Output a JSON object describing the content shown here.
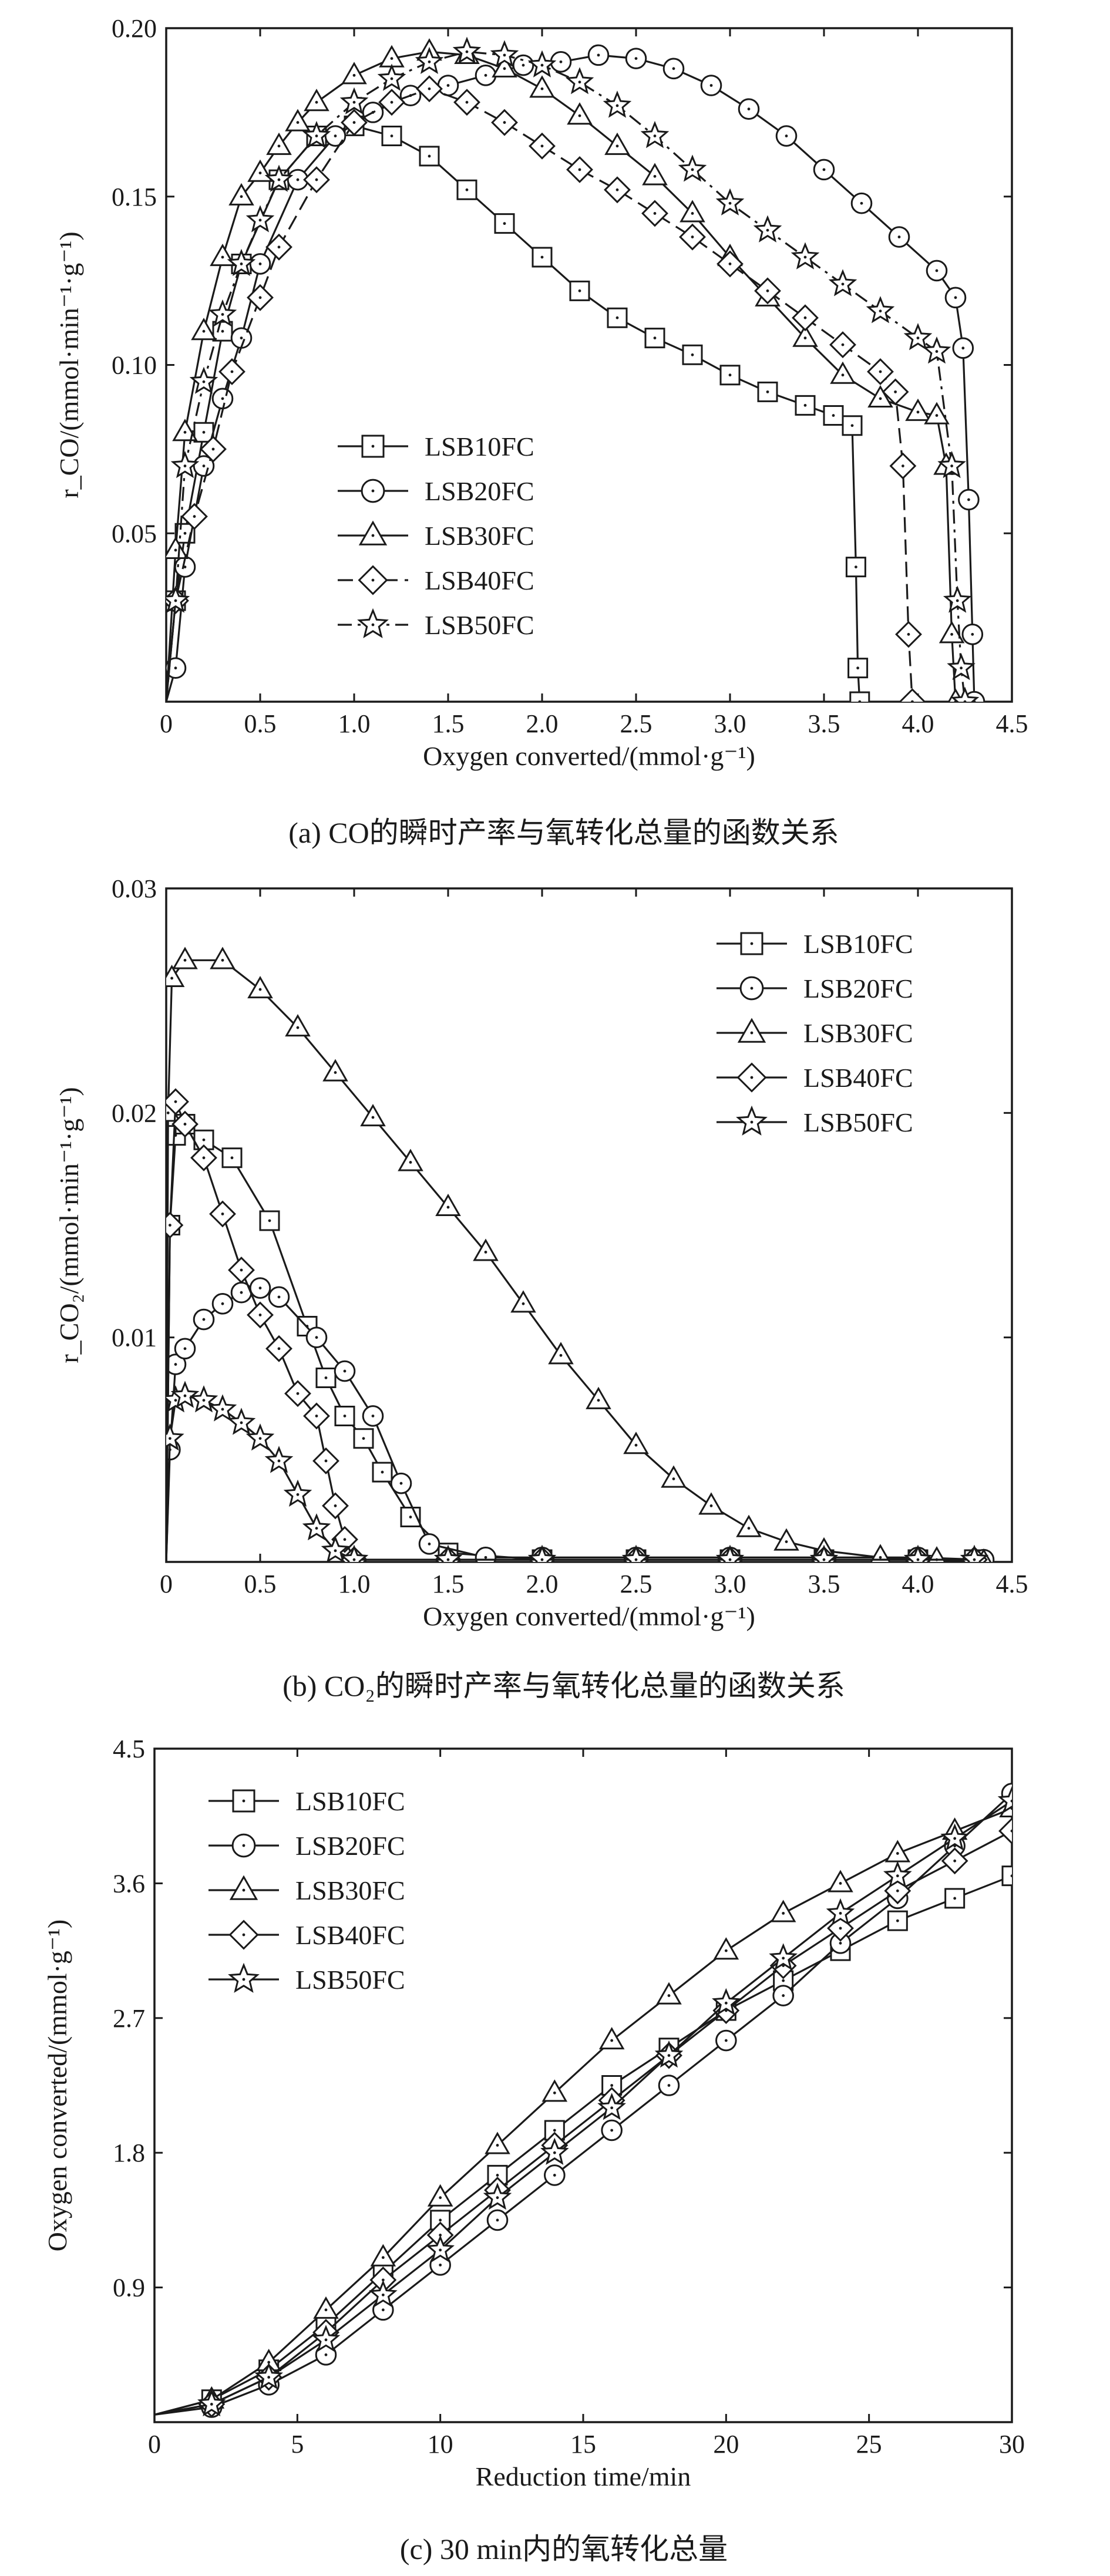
{
  "figure": {
    "panels": [
      {
        "caption": "(a) CO的瞬时产率与氧转化总量的函数关系"
      },
      {
        "caption": "(b) CO₂的瞬时产率与氧转化总量的函数关系"
      },
      {
        "caption": "(c) 30 min内的氧转化总量"
      }
    ]
  },
  "chart_data": [
    {
      "type": "line",
      "title": "(a) CO的瞬时产率与氧转化总量的函数关系",
      "xlabel": "Oxygen converted/(mmol·g⁻¹)",
      "ylabel": "r_CO/(mmol·min⁻¹·g⁻¹)",
      "xlim": [
        0,
        4.5
      ],
      "ylim": [
        0,
        0.2
      ],
      "xticks": [
        0,
        0.5,
        1.0,
        1.5,
        2.0,
        2.5,
        3.0,
        3.5,
        4.0,
        4.5
      ],
      "xtick_labels": [
        "0",
        "0.5",
        "1.0",
        "1.5",
        "2.0",
        "2.5",
        "3.0",
        "3.5",
        "4.0",
        "4.5"
      ],
      "yticks": [
        0.05,
        0.1,
        0.15,
        0.2
      ],
      "ytick_labels": [
        "0.05",
        "0.10",
        "0.15",
        "0.20"
      ],
      "legend_position": "center-left",
      "series": [
        {
          "name": "LSB10FC",
          "marker": "square",
          "dash": "solid",
          "x": [
            0,
            0.05,
            0.1,
            0.2,
            0.3,
            0.4,
            0.6,
            0.8,
            1.0,
            1.2,
            1.4,
            1.6,
            1.8,
            2.0,
            2.2,
            2.4,
            2.6,
            2.8,
            3.0,
            3.2,
            3.4,
            3.55,
            3.65,
            3.67,
            3.68,
            3.69
          ],
          "y": [
            0,
            0.03,
            0.05,
            0.08,
            0.11,
            0.13,
            0.155,
            0.168,
            0.171,
            0.168,
            0.162,
            0.152,
            0.142,
            0.132,
            0.122,
            0.114,
            0.108,
            0.103,
            0.097,
            0.092,
            0.088,
            0.085,
            0.082,
            0.04,
            0.01,
            0
          ]
        },
        {
          "name": "LSB20FC",
          "marker": "circle",
          "dash": "solid",
          "x": [
            0,
            0.05,
            0.1,
            0.2,
            0.3,
            0.4,
            0.5,
            0.7,
            0.9,
            1.1,
            1.3,
            1.5,
            1.7,
            1.9,
            2.1,
            2.3,
            2.5,
            2.7,
            2.9,
            3.1,
            3.3,
            3.5,
            3.7,
            3.9,
            4.1,
            4.2,
            4.24,
            4.27,
            4.29,
            4.3
          ],
          "y": [
            0,
            0.01,
            0.04,
            0.07,
            0.09,
            0.108,
            0.13,
            0.155,
            0.168,
            0.175,
            0.18,
            0.183,
            0.186,
            0.189,
            0.19,
            0.192,
            0.191,
            0.188,
            0.183,
            0.176,
            0.168,
            0.158,
            0.148,
            0.138,
            0.128,
            0.12,
            0.105,
            0.06,
            0.02,
            0
          ]
        },
        {
          "name": "LSB30FC",
          "marker": "triangle",
          "dash": "solid",
          "x": [
            0,
            0.05,
            0.1,
            0.2,
            0.3,
            0.4,
            0.5,
            0.6,
            0.7,
            0.8,
            1.0,
            1.2,
            1.4,
            1.6,
            1.8,
            2.0,
            2.2,
            2.4,
            2.6,
            2.8,
            3.0,
            3.2,
            3.4,
            3.6,
            3.8,
            4.0,
            4.1,
            4.15,
            4.18,
            4.2
          ],
          "y": [
            0,
            0.045,
            0.08,
            0.11,
            0.132,
            0.15,
            0.157,
            0.165,
            0.172,
            0.178,
            0.186,
            0.191,
            0.193,
            0.192,
            0.188,
            0.182,
            0.174,
            0.165,
            0.156,
            0.145,
            0.132,
            0.12,
            0.108,
            0.097,
            0.09,
            0.086,
            0.085,
            0.07,
            0.02,
            0
          ]
        },
        {
          "name": "LSB40FC",
          "marker": "diamond",
          "dash": "dash",
          "x": [
            0,
            0.05,
            0.15,
            0.25,
            0.35,
            0.5,
            0.6,
            0.8,
            1.0,
            1.2,
            1.4,
            1.6,
            1.8,
            2.0,
            2.2,
            2.4,
            2.6,
            2.8,
            3.0,
            3.2,
            3.4,
            3.6,
            3.8,
            3.88,
            3.92,
            3.95,
            3.97
          ],
          "y": [
            0,
            0.03,
            0.055,
            0.075,
            0.098,
            0.12,
            0.135,
            0.155,
            0.172,
            0.178,
            0.182,
            0.178,
            0.172,
            0.165,
            0.158,
            0.152,
            0.145,
            0.138,
            0.13,
            0.122,
            0.114,
            0.106,
            0.098,
            0.092,
            0.07,
            0.02,
            0
          ]
        },
        {
          "name": "LSB50FC",
          "marker": "star",
          "dash": "dashdot",
          "x": [
            0,
            0.05,
            0.1,
            0.2,
            0.3,
            0.4,
            0.5,
            0.6,
            0.8,
            1.0,
            1.2,
            1.4,
            1.6,
            1.8,
            2.0,
            2.2,
            2.4,
            2.6,
            2.8,
            3.0,
            3.2,
            3.4,
            3.6,
            3.8,
            4.0,
            4.1,
            4.18,
            4.21,
            4.23,
            4.25
          ],
          "y": [
            0,
            0.03,
            0.07,
            0.095,
            0.115,
            0.13,
            0.143,
            0.155,
            0.168,
            0.178,
            0.185,
            0.19,
            0.193,
            0.192,
            0.189,
            0.184,
            0.177,
            0.168,
            0.158,
            0.148,
            0.14,
            0.132,
            0.124,
            0.116,
            0.108,
            0.104,
            0.07,
            0.03,
            0.01,
            0
          ]
        }
      ]
    },
    {
      "type": "line",
      "title": "(b) CO₂的瞬时产率与氧转化总量的函数关系",
      "xlabel": "Oxygen converted/(mmol·g⁻¹)",
      "ylabel": "r_CO₂/(mmol·min⁻¹·g⁻¹)",
      "xlim": [
        0,
        4.5
      ],
      "ylim": [
        0,
        0.03
      ],
      "xticks": [
        0,
        0.5,
        1.0,
        1.5,
        2.0,
        2.5,
        3.0,
        3.5,
        4.0,
        4.5
      ],
      "xtick_labels": [
        "0",
        "0.5",
        "1.0",
        "1.5",
        "2.0",
        "2.5",
        "3.0",
        "3.5",
        "4.0",
        "4.5"
      ],
      "yticks": [
        0.01,
        0.02,
        0.03
      ],
      "ytick_labels": [
        "0.01",
        "0.02",
        "0.03"
      ],
      "legend_position": "top-right",
      "series": [
        {
          "name": "LSB10FC",
          "marker": "square",
          "dash": "solid",
          "x": [
            0,
            0.02,
            0.05,
            0.1,
            0.2,
            0.35,
            0.55,
            0.75,
            0.85,
            0.95,
            1.05,
            1.15,
            1.3,
            1.5,
            2.0,
            2.5,
            3.0,
            3.5,
            4.0,
            4.3
          ],
          "y": [
            0,
            0.015,
            0.019,
            0.0195,
            0.0188,
            0.018,
            0.0152,
            0.0105,
            0.0082,
            0.0065,
            0.0055,
            0.004,
            0.002,
            0.0004,
            0.0001,
            0.0001,
            0.0001,
            0.0001,
            0.0001,
            0.0001
          ]
        },
        {
          "name": "LSB20FC",
          "marker": "circle",
          "dash": "solid",
          "x": [
            0,
            0.02,
            0.05,
            0.1,
            0.2,
            0.3,
            0.4,
            0.5,
            0.6,
            0.8,
            0.95,
            1.1,
            1.25,
            1.4,
            1.7,
            2.0,
            2.5,
            3.0,
            3.5,
            4.0,
            4.35
          ],
          "y": [
            0,
            0.005,
            0.0088,
            0.0095,
            0.0108,
            0.0115,
            0.012,
            0.0122,
            0.0118,
            0.01,
            0.0085,
            0.0065,
            0.0035,
            0.0008,
            0.0002,
            0.0002,
            0.0002,
            0.0002,
            0.0002,
            0.0002,
            0.0001
          ]
        },
        {
          "name": "LSB30FC",
          "marker": "triangle",
          "dash": "solid",
          "x": [
            0,
            0.01,
            0.03,
            0.1,
            0.3,
            0.5,
            0.7,
            0.9,
            1.1,
            1.3,
            1.5,
            1.7,
            1.9,
            2.1,
            2.3,
            2.5,
            2.7,
            2.9,
            3.1,
            3.3,
            3.5,
            3.8,
            4.1,
            4.35
          ],
          "y": [
            0,
            0.02,
            0.026,
            0.0268,
            0.0268,
            0.0255,
            0.0238,
            0.0218,
            0.0198,
            0.0178,
            0.0158,
            0.0138,
            0.0115,
            0.0092,
            0.0072,
            0.0052,
            0.0037,
            0.0025,
            0.0015,
            0.0009,
            0.0005,
            0.0002,
            0.0001,
            0
          ]
        },
        {
          "name": "LSB40FC",
          "marker": "diamond",
          "dash": "solid",
          "x": [
            0,
            0.02,
            0.05,
            0.1,
            0.2,
            0.3,
            0.4,
            0.5,
            0.6,
            0.7,
            0.8,
            0.85,
            0.9,
            0.95,
            1.0,
            1.5,
            2.0,
            2.5,
            3.0,
            3.5,
            4.0,
            4.3
          ],
          "y": [
            0,
            0.015,
            0.0205,
            0.0195,
            0.018,
            0.0155,
            0.013,
            0.011,
            0.0095,
            0.0075,
            0.0065,
            0.0045,
            0.0025,
            0.001,
            0.0001,
            0.0001,
            0.0001,
            0.0001,
            0.0001,
            0.0001,
            0.0001,
            0.0001
          ]
        },
        {
          "name": "LSB50FC",
          "marker": "star",
          "dash": "solid",
          "x": [
            0,
            0.02,
            0.05,
            0.1,
            0.2,
            0.3,
            0.4,
            0.5,
            0.6,
            0.7,
            0.8,
            0.9,
            1.0,
            1.5,
            2.0,
            2.5,
            3.0,
            3.5,
            4.0,
            4.3
          ],
          "y": [
            0,
            0.0055,
            0.0072,
            0.0074,
            0.0072,
            0.0068,
            0.0062,
            0.0055,
            0.0045,
            0.003,
            0.0015,
            0.0005,
            0.0001,
            0.0001,
            0.0001,
            0.0001,
            0.0001,
            0.0001,
            0.0001,
            0.0001
          ]
        }
      ]
    },
    {
      "type": "line",
      "title": "(c) 30 min内的氧转化总量",
      "xlabel": "Reduction time/min",
      "ylabel": "Oxygen converted/(mmol·g⁻¹)",
      "xlim": [
        0,
        30
      ],
      "ylim": [
        0,
        4.5
      ],
      "xticks": [
        0,
        5,
        10,
        15,
        20,
        25,
        30
      ],
      "xtick_labels": [
        "0",
        "5",
        "10",
        "15",
        "20",
        "25",
        "30"
      ],
      "yticks": [
        0.9,
        1.8,
        2.7,
        3.6,
        4.5
      ],
      "ytick_labels": [
        "0.9",
        "1.8",
        "2.7",
        "3.6",
        "4.5"
      ],
      "legend_position": "top-left",
      "series": [
        {
          "name": "LSB10FC",
          "marker": "square",
          "dash": "solid",
          "x": [
            0,
            2,
            4,
            6,
            8,
            10,
            12,
            14,
            16,
            18,
            20,
            22,
            24,
            26,
            28,
            30
          ],
          "y": [
            0.05,
            0.15,
            0.35,
            0.65,
            1.0,
            1.35,
            1.65,
            1.95,
            2.25,
            2.5,
            2.75,
            2.95,
            3.15,
            3.35,
            3.5,
            3.65
          ]
        },
        {
          "name": "LSB20FC",
          "marker": "circle",
          "dash": "solid",
          "x": [
            0,
            2,
            4,
            6,
            8,
            10,
            12,
            14,
            16,
            18,
            20,
            22,
            24,
            26,
            28,
            30
          ],
          "y": [
            0.05,
            0.1,
            0.25,
            0.45,
            0.75,
            1.05,
            1.35,
            1.65,
            1.95,
            2.25,
            2.55,
            2.85,
            3.2,
            3.5,
            3.85,
            4.2
          ]
        },
        {
          "name": "LSB30FC",
          "marker": "triangle",
          "dash": "solid",
          "x": [
            0,
            2,
            4,
            6,
            8,
            10,
            12,
            14,
            16,
            18,
            20,
            22,
            24,
            26,
            28,
            30
          ],
          "y": [
            0.05,
            0.15,
            0.4,
            0.75,
            1.1,
            1.5,
            1.85,
            2.2,
            2.55,
            2.85,
            3.15,
            3.4,
            3.6,
            3.8,
            3.95,
            4.1
          ]
        },
        {
          "name": "LSB40FC",
          "marker": "diamond",
          "dash": "solid",
          "x": [
            0,
            2,
            4,
            6,
            8,
            10,
            12,
            14,
            16,
            18,
            20,
            22,
            24,
            26,
            28,
            30
          ],
          "y": [
            0.05,
            0.12,
            0.3,
            0.6,
            0.95,
            1.25,
            1.55,
            1.85,
            2.15,
            2.45,
            2.75,
            3.05,
            3.3,
            3.55,
            3.75,
            3.95
          ]
        },
        {
          "name": "LSB50FC",
          "marker": "star",
          "dash": "solid",
          "x": [
            0,
            2,
            4,
            6,
            8,
            10,
            12,
            14,
            16,
            18,
            20,
            22,
            24,
            26,
            28,
            30
          ],
          "y": [
            0.05,
            0.12,
            0.3,
            0.55,
            0.85,
            1.15,
            1.5,
            1.8,
            2.1,
            2.45,
            2.8,
            3.1,
            3.4,
            3.65,
            3.9,
            4.15
          ]
        }
      ]
    }
  ]
}
